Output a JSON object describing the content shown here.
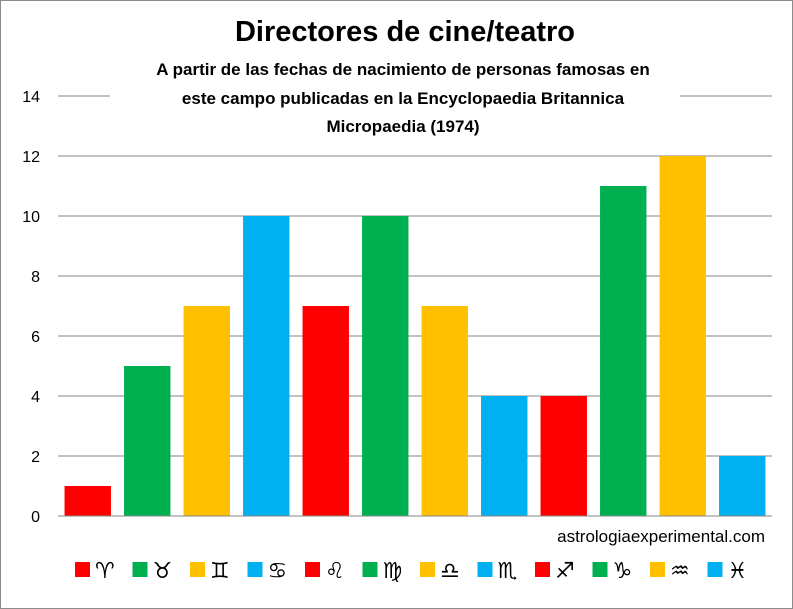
{
  "chart_data": {
    "type": "bar",
    "title": "Directores de cine/teatro",
    "subtitle_lines": [
      "A partir de las fechas de nacimiento de personas famosas en",
      "este campo publicadas en la Encyclopaedia Britannica",
      "Micropaedia (1974)"
    ],
    "categories": [
      "♈",
      "♉",
      "♊",
      "♋",
      "♌",
      "♍",
      "♎",
      "♏",
      "♐",
      "♑",
      "♒",
      "♓"
    ],
    "values": [
      1,
      5,
      7,
      10,
      7,
      10,
      7,
      4,
      4,
      11,
      12,
      2
    ],
    "bar_colors": [
      "#ff0000",
      "#00b050",
      "#ffc000",
      "#00b0f0",
      "#ff0000",
      "#00b050",
      "#ffc000",
      "#00b0f0",
      "#ff0000",
      "#00b050",
      "#ffc000",
      "#00b0f0"
    ],
    "yticks": [
      "0",
      "2",
      "4",
      "6",
      "8",
      "10",
      "12",
      "14"
    ],
    "ylim": [
      0,
      14
    ],
    "grid": true,
    "legend": "bottom",
    "xlabel": "",
    "ylabel": ""
  },
  "watermark": "astrologiaexperimental.com"
}
